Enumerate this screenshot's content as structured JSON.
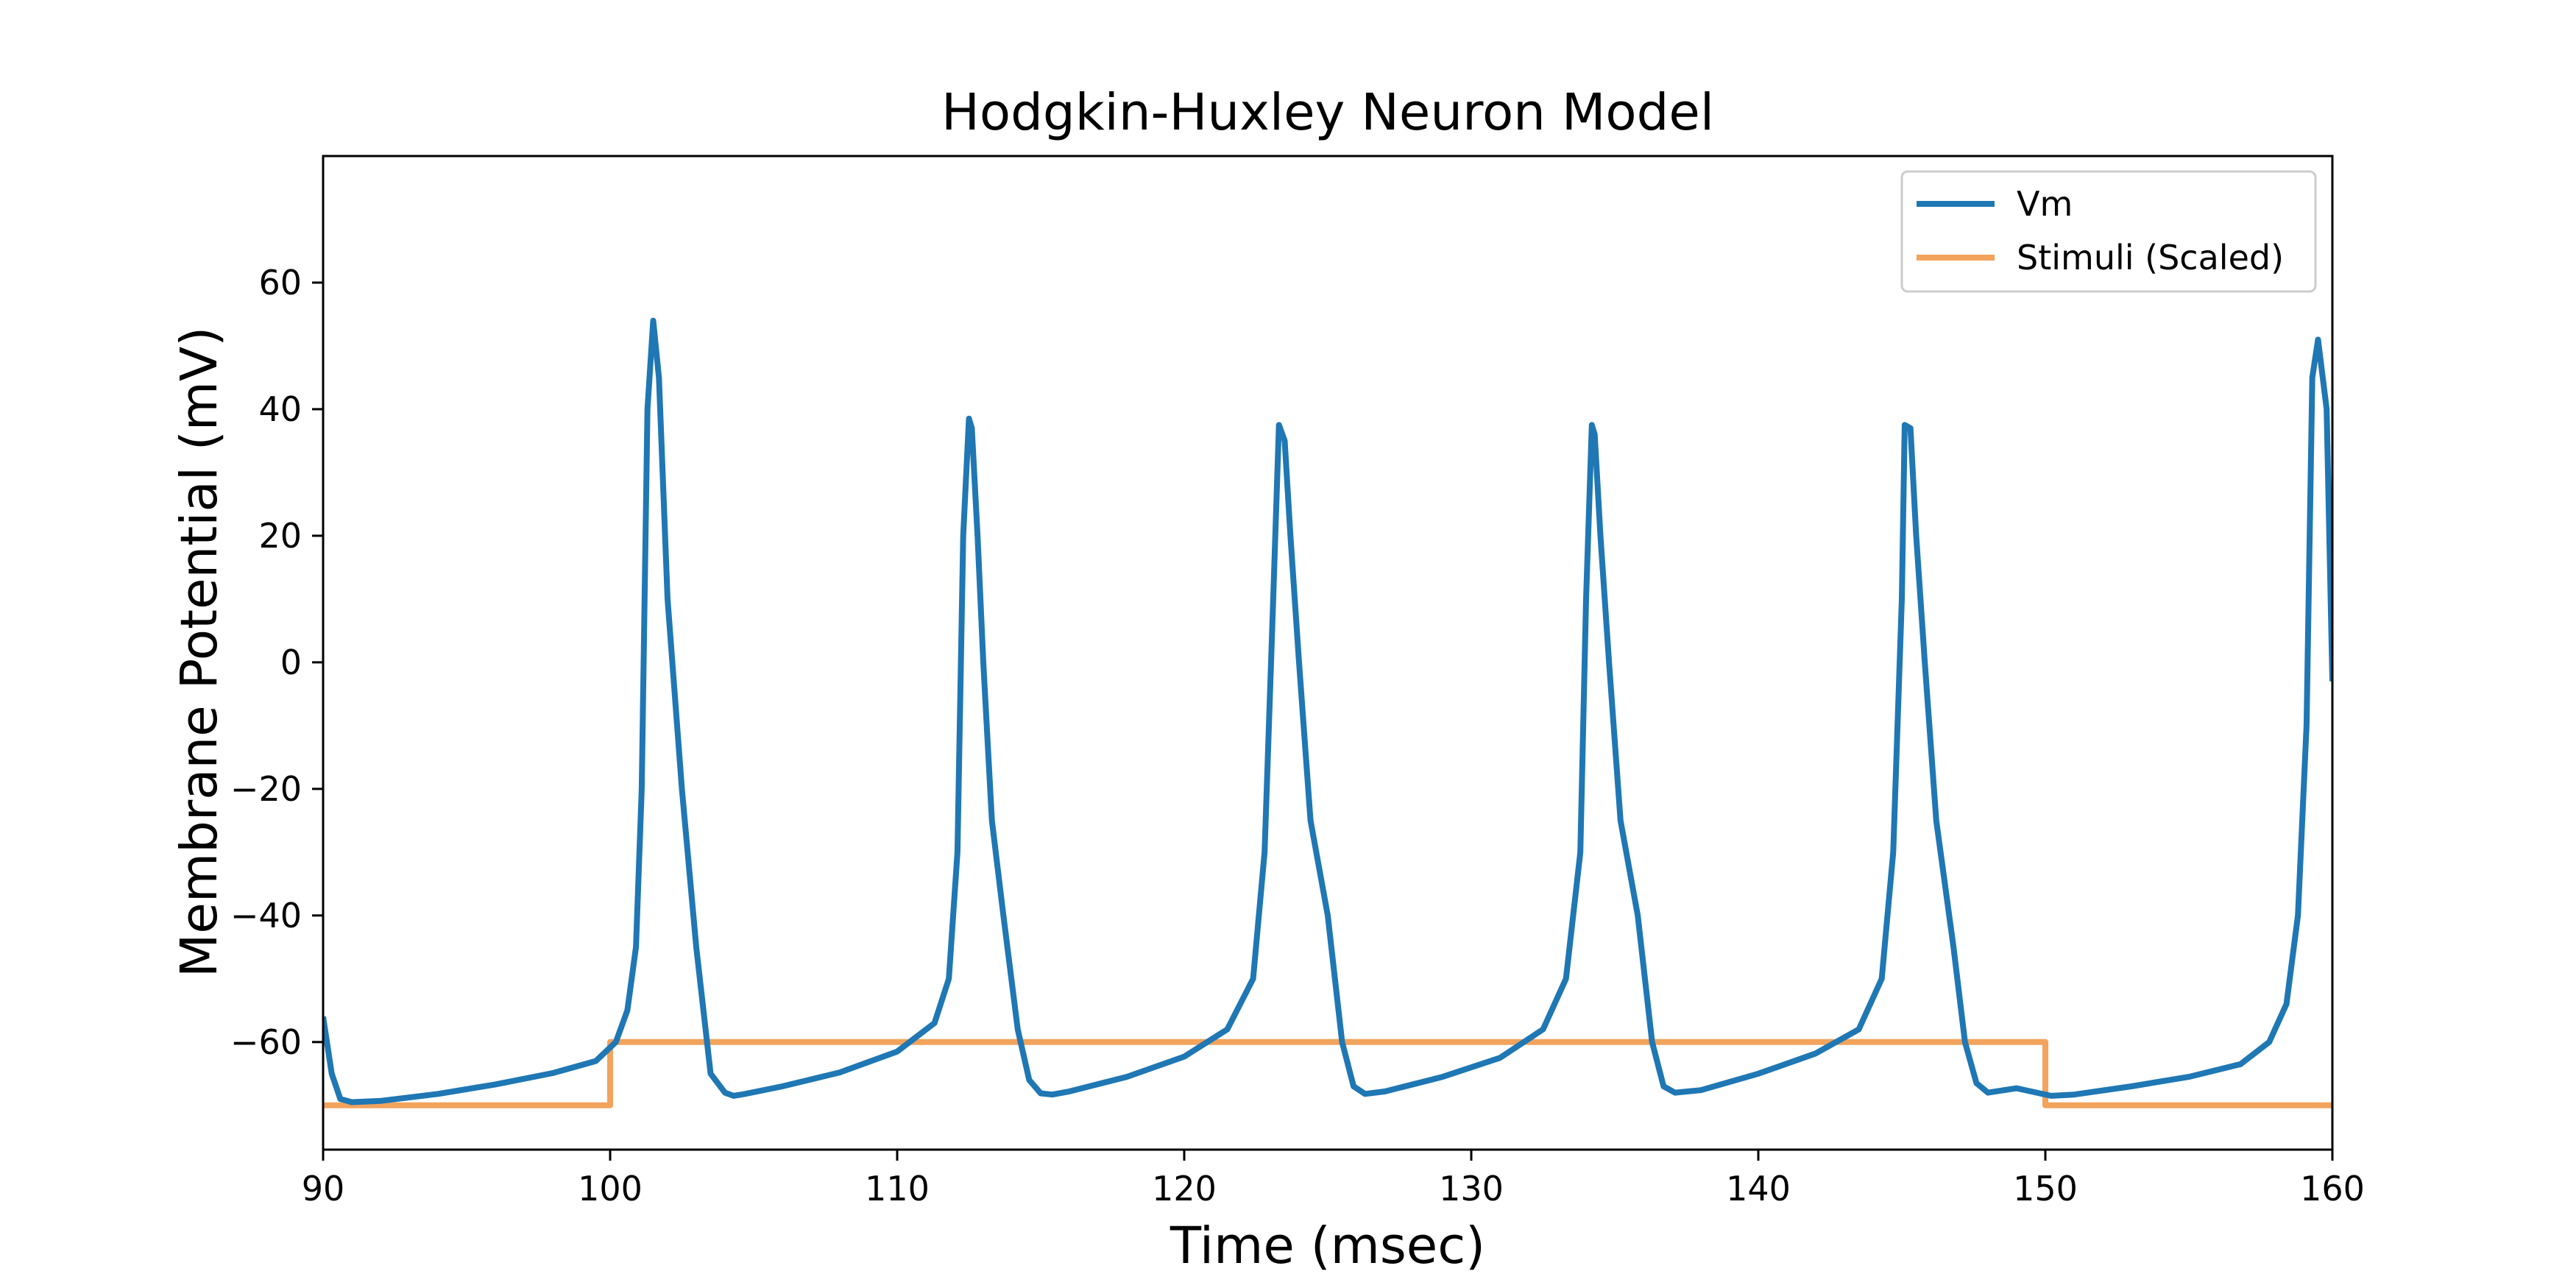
{
  "chart_data": {
    "type": "line",
    "title": "Hodgkin-Huxley Neuron Model",
    "xlabel": "Time (msec)",
    "ylabel": "Membrane Potential (mV)",
    "xlim": [
      90,
      160
    ],
    "ylim": [
      -77,
      80
    ],
    "xticks": [
      90,
      100,
      110,
      120,
      130,
      140,
      150,
      160
    ],
    "yticks": [
      -60,
      -40,
      -20,
      0,
      20,
      40,
      60
    ],
    "xtick_labels": [
      "90",
      "100",
      "110",
      "120",
      "130",
      "140",
      "150",
      "160"
    ],
    "ytick_labels": [
      "−60",
      "−40",
      "−20",
      "0",
      "20",
      "40",
      "60"
    ],
    "grid": false,
    "legend_position": "top-right",
    "series": [
      {
        "name": "Vm",
        "color": "#1f77b4",
        "x": [
          90,
          90.3,
          90.6,
          91,
          92,
          94,
          96,
          98,
          99.5,
          100.2,
          100.6,
          100.9,
          101.1,
          101.3,
          101.5,
          101.7,
          102.0,
          102.5,
          103.0,
          103.5,
          104.0,
          104.3,
          104.7,
          106,
          108,
          110,
          111.3,
          111.8,
          112.1,
          112.3,
          112.5,
          112.6,
          112.8,
          113.0,
          113.3,
          113.7,
          114.2,
          114.6,
          115.0,
          115.4,
          116,
          118,
          120,
          121.5,
          122.4,
          122.8,
          123.1,
          123.3,
          123.5,
          123.7,
          124.0,
          124.4,
          125.0,
          125.5,
          125.9,
          126.3,
          127,
          129,
          131,
          132.5,
          133.3,
          133.8,
          134.0,
          134.2,
          134.3,
          134.5,
          134.8,
          135.2,
          135.8,
          136.3,
          136.7,
          137.1,
          138,
          140,
          142,
          143.5,
          144.3,
          144.7,
          145.0,
          145.1,
          145.3,
          145.5,
          145.8,
          146.2,
          146.8,
          147.2,
          147.6,
          148.0,
          149,
          150.2,
          151,
          153,
          155,
          156.8,
          157.8,
          158.4,
          158.8,
          159.1,
          159.3,
          159.5,
          159.8,
          160
        ],
        "y": [
          -56,
          -65,
          -69,
          -69.5,
          -69.3,
          -68.2,
          -66.7,
          -64.9,
          -63,
          -60,
          -55,
          -45,
          -20,
          40,
          54,
          45,
          10,
          -20,
          -45,
          -65,
          -68,
          -68.5,
          -68.2,
          -67,
          -64.8,
          -61.5,
          -57,
          -50,
          -30,
          20,
          38.5,
          37,
          20,
          0,
          -25,
          -40,
          -58,
          -66,
          -68.1,
          -68.3,
          -67.8,
          -65.5,
          -62.3,
          -58,
          -50,
          -30,
          10,
          37.5,
          35,
          20,
          0,
          -25,
          -40,
          -60,
          -67,
          -68.2,
          -67.8,
          -65.5,
          -62.5,
          -58,
          -50,
          -30,
          10,
          37.5,
          36,
          20,
          0,
          -25,
          -40,
          -60,
          -67,
          -68,
          -67.6,
          -65,
          -61.8,
          -58,
          -50,
          -30,
          10,
          37.5,
          37,
          20,
          0,
          -25,
          -45,
          -60,
          -66.5,
          -68,
          -67.3,
          -68.5,
          -68.3,
          -67,
          -65.5,
          -63.5,
          -60,
          -54,
          -40,
          -10,
          45,
          51,
          40,
          -3
        ]
      },
      {
        "name": "Stimuli (Scaled)",
        "color": "#f2a35c",
        "x": [
          90,
          100,
          100,
          150,
          150,
          160
        ],
        "y": [
          -70,
          -70,
          -60,
          -60,
          -70,
          -70
        ]
      }
    ]
  }
}
